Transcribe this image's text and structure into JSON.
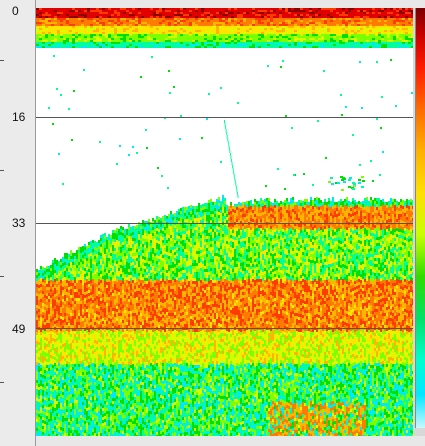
{
  "depth_ruler": {
    "labels": [
      "0",
      "16",
      "33",
      "49"
    ],
    "max_depth": 65
  },
  "echogram": {
    "background": "#ffffff",
    "grid_color": "#555555",
    "palette": [
      "#8b0000",
      "#e00000",
      "#ff3c00",
      "#ff7a00",
      "#ffb400",
      "#ffe400",
      "#d4ff00",
      "#7cff00",
      "#00e000",
      "#00ff9c",
      "#00e8ff"
    ]
  },
  "color_scale": {
    "top_color": "#7a0000",
    "bottom_color": "#c8f8ff"
  }
}
